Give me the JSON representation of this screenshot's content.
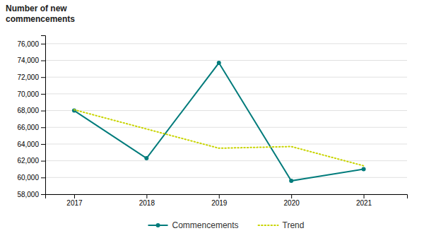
{
  "chart_data": {
    "type": "line",
    "ylabel": [
      "Number of new",
      "commencements"
    ],
    "x": [
      2017,
      2018,
      2019,
      2020,
      2021
    ],
    "series": [
      {
        "name": "Commencements",
        "color": "#007b7b",
        "marker": "circle",
        "line_style": "solid",
        "values": [
          68000,
          62300,
          73700,
          59600,
          61000
        ]
      },
      {
        "name": "Trend",
        "color": "#c8d400",
        "line_style": "dotted",
        "values": [
          68100,
          65800,
          63500,
          63700,
          61400
        ]
      }
    ],
    "xlim": [
      2016.6,
      2021.6
    ],
    "xticks": [
      2017,
      2018,
      2019,
      2020,
      2021
    ],
    "ylim": [
      58000,
      77000
    ],
    "yticks": [
      {
        "value": 58000,
        "label": "58,000"
      },
      {
        "value": 60000,
        "label": "60,000"
      },
      {
        "value": 62000,
        "label": "62,000"
      },
      {
        "value": 64000,
        "label": "64,000"
      },
      {
        "value": 66000,
        "label": "66,000"
      },
      {
        "value": 68000,
        "label": "68,000"
      },
      {
        "value": 70000,
        "label": "70,000"
      },
      {
        "value": 72000,
        "label": "72,000"
      },
      {
        "value": 74000,
        "label": "74,000"
      },
      {
        "value": 76000,
        "label": "76,000"
      }
    ],
    "grid": true,
    "legend": "bottom"
  }
}
